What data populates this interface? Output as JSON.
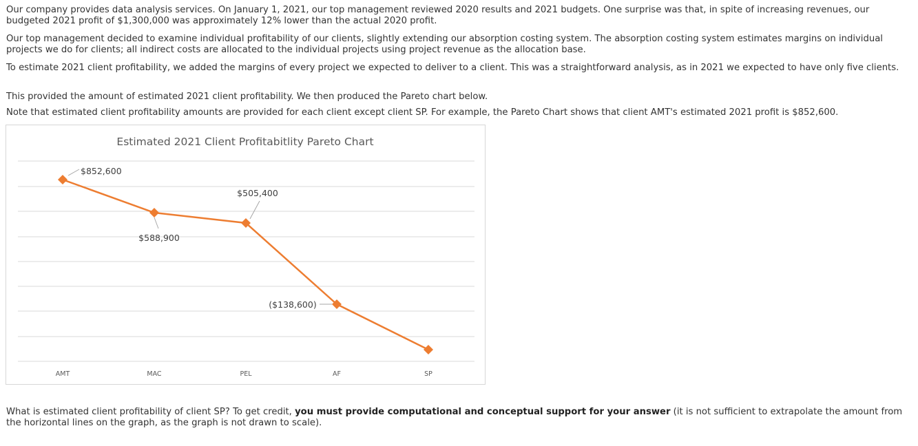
{
  "paragraphs": {
    "p1": "Our company provides data analysis services. On January 1, 2021, our top management reviewed 2020 results and 2021 budgets. One surprise was that, in spite of increasing revenues, our budgeted 2021 profit of $1,300,000 was approximately 12% lower than the actual 2020 profit.",
    "p2": "Our top management decided to examine individual profitability of our clients, slightly extending our absorption costing system. The absorption costing system estimates margins on individual projects we do for clients; all indirect costs are allocated to the individual projects using project revenue as the allocation base.",
    "p3": "To estimate 2021 client profitability, we added the margins of every project we expected to deliver to a client. This was a straightforward analysis, as in 2021 we expected to have only five clients.",
    "p4": "This provided the amount of estimated 2021 client profitability. We then produced the Pareto chart below.",
    "p5": "Note that estimated client profitability amounts are provided for each client except client SP. For example, the Pareto Chart shows that client AMT's estimated 2021 profit is $852,600."
  },
  "question": {
    "part1": "What is estimated client profitability of client SP? To get credit, ",
    "bold": "you must provide computational and conceptual support for your answer",
    "part2": " (it is not sufficient to extrapolate the amount from the horizontal lines on the graph, as the graph is not drawn to scale)."
  },
  "chart_data": {
    "type": "line",
    "title": "Estimated 2021 Client Profitabitlity Pareto Chart",
    "categories": [
      "AMT",
      "MAC",
      "PEL",
      "AF",
      "SP"
    ],
    "series": [
      {
        "values": [
          852600,
          588900,
          505400,
          -138600,
          null
        ]
      }
    ],
    "data_labels": [
      "$852,600",
      "$588,900",
      "$505,400",
      "($138,600)",
      ""
    ],
    "note_axis": "not drawn to scale; no y-axis tick labels",
    "grid": true,
    "color": "#ED7D31"
  }
}
